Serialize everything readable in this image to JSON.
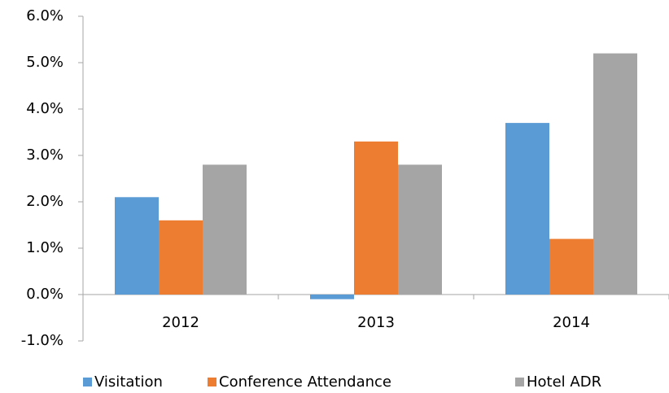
{
  "chart_data": {
    "type": "bar",
    "categories": [
      "2012",
      "2013",
      "2014"
    ],
    "series": [
      {
        "name": "Visitation",
        "color": "#5b9bd5",
        "values": [
          2.1,
          -0.1,
          3.7
        ]
      },
      {
        "name": "Conference Attendance",
        "color": "#ed7d31",
        "values": [
          1.6,
          3.3,
          1.2
        ]
      },
      {
        "name": "Hotel ADR",
        "color": "#a5a5a5",
        "values": [
          2.8,
          2.8,
          5.2
        ]
      }
    ],
    "ylim": [
      -1,
      6
    ],
    "yticks": [
      {
        "value": -1,
        "label": "-1.0%"
      },
      {
        "value": 0,
        "label": "0.0%"
      },
      {
        "value": 1,
        "label": "1.0%"
      },
      {
        "value": 2,
        "label": "2.0%"
      },
      {
        "value": 3,
        "label": "3.0%"
      },
      {
        "value": 4,
        "label": "4.0%"
      },
      {
        "value": 5,
        "label": "5.0%"
      },
      {
        "value": 6,
        "label": "6.0%"
      }
    ],
    "grid": false,
    "legend": "bottom"
  }
}
